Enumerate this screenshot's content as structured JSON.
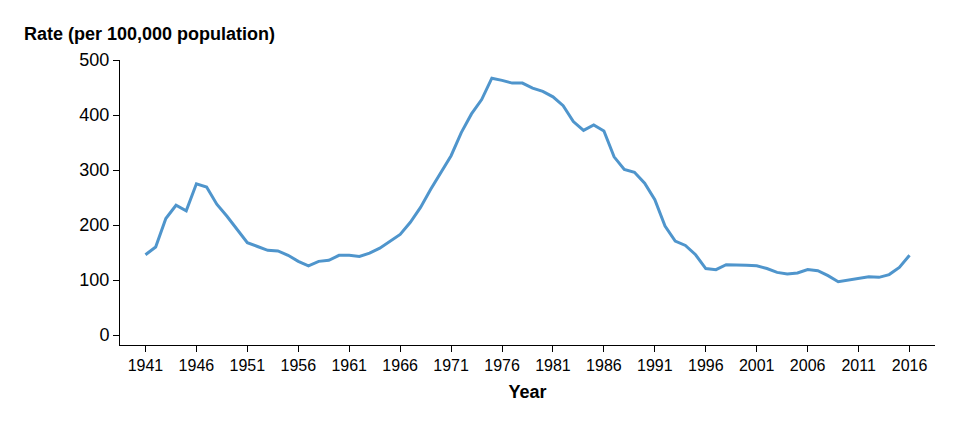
{
  "chart_data": {
    "type": "line",
    "y_label": "Rate (per 100,000 population)",
    "x_label": "Year",
    "x": [
      1941,
      1942,
      1943,
      1944,
      1945,
      1946,
      1947,
      1948,
      1949,
      1950,
      1951,
      1952,
      1953,
      1954,
      1955,
      1956,
      1957,
      1958,
      1959,
      1960,
      1961,
      1962,
      1963,
      1964,
      1965,
      1966,
      1967,
      1968,
      1969,
      1970,
      1971,
      1972,
      1973,
      1974,
      1975,
      1976,
      1977,
      1978,
      1979,
      1980,
      1981,
      1982,
      1983,
      1984,
      1985,
      1986,
      1987,
      1988,
      1989,
      1990,
      1991,
      1992,
      1993,
      1994,
      1995,
      1996,
      1997,
      1998,
      1999,
      2000,
      2001,
      2002,
      2003,
      2004,
      2005,
      2006,
      2007,
      2008,
      2009,
      2010,
      2011,
      2012,
      2013,
      2014,
      2015,
      2016
    ],
    "values": [
      146,
      160,
      212,
      236,
      226,
      275,
      269,
      238,
      216,
      191,
      168,
      161,
      154,
      153,
      145,
      134,
      126,
      134,
      136,
      145,
      145,
      143,
      149,
      158,
      170,
      183,
      205,
      232,
      265,
      296,
      326,
      368,
      402,
      428,
      467,
      463,
      458,
      458,
      449,
      443,
      433,
      417,
      388,
      372,
      382,
      371,
      324,
      301,
      296,
      276,
      246,
      198,
      171,
      163,
      146,
      121,
      119,
      128,
      128,
      127,
      126,
      121,
      114,
      111,
      113,
      119,
      117,
      108,
      97,
      100,
      103,
      106,
      105,
      110,
      123,
      145
    ],
    "color": "#4f95cc",
    "xlim": [
      1938.5,
      2018.5
    ],
    "xticks": [
      1941,
      1946,
      1951,
      1956,
      1961,
      1966,
      1971,
      1976,
      1981,
      1986,
      1991,
      1996,
      2001,
      2006,
      2011,
      2016
    ],
    "ylim": [
      -18,
      500
    ],
    "yticks": [
      0,
      100,
      200,
      300,
      400,
      500
    ],
    "grid": false
  }
}
